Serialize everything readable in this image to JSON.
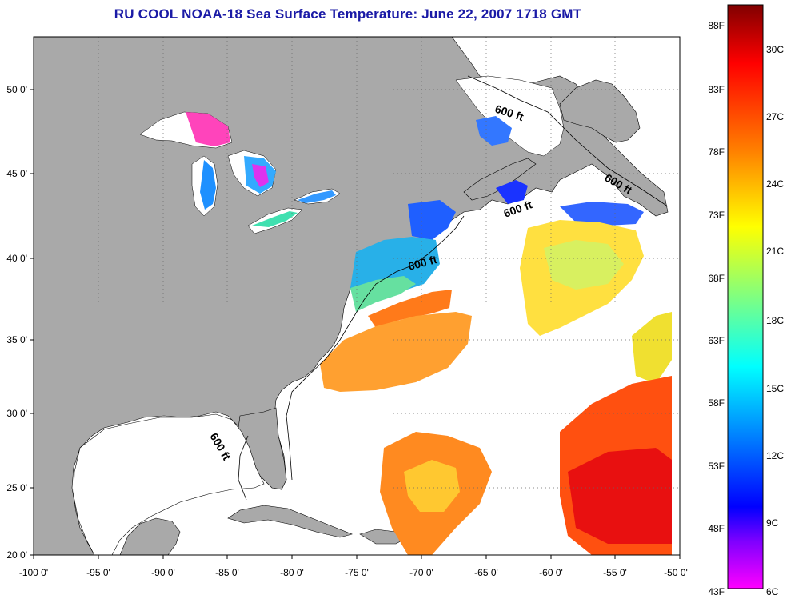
{
  "title": "RU COOL  NOAA-18  Sea Surface Temperature:  June 22, 2007 1718 GMT",
  "map": {
    "lon_ticks": [
      "-100 0'",
      "-95 0'",
      "-90 0'",
      "-85 0'",
      "-80 0'",
      "-75 0'",
      "-70 0'",
      "-65 0'",
      "-60 0'",
      "-55 0'",
      "-50 0'"
    ],
    "lat_ticks": [
      "50 0'",
      "45 0'",
      "40 0'",
      "35 0'",
      "30 0'",
      "25 0'",
      "20 0'"
    ],
    "depth_contour_labels": [
      "600 ft",
      "600 ft",
      "600 ft",
      "600 ft",
      "600 ft"
    ],
    "colors": {
      "land": "#a9a9a9",
      "cloud_no_data": "#ffffff",
      "grid": "#555555"
    }
  },
  "colorbar": {
    "fahrenheit_labels": [
      "88F",
      "83F",
      "78F",
      "73F",
      "68F",
      "63F",
      "58F",
      "53F",
      "48F",
      "43F"
    ],
    "celsius_labels": [
      "30C",
      "27C",
      "24C",
      "21C",
      "18C",
      "15C",
      "12C",
      "9C",
      "6C"
    ],
    "gradient_stops": [
      "#800000",
      "#ff0000",
      "#ff8000",
      "#ffff00",
      "#80ff80",
      "#00ffff",
      "#0080ff",
      "#0000ff",
      "#8000ff",
      "#ff00ff"
    ]
  }
}
